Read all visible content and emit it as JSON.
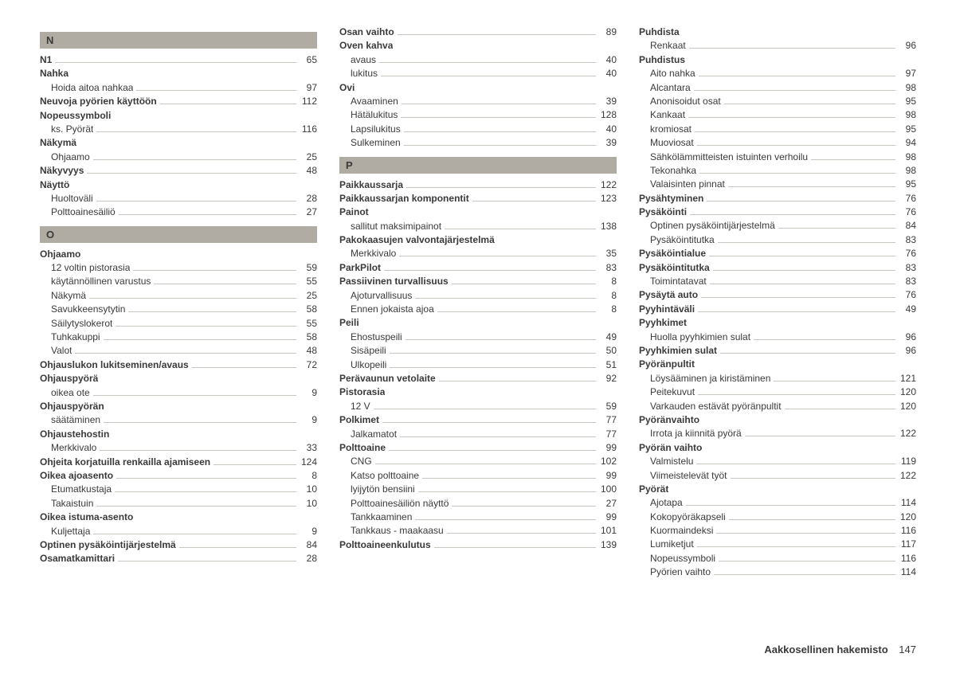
{
  "footer": {
    "title": "Aakkosellinen hakemisto",
    "page": "147"
  },
  "columns": [
    {
      "blocks": [
        {
          "type": "header",
          "text": "N"
        },
        {
          "type": "entry",
          "label": "N1",
          "page": "65",
          "bold": true
        },
        {
          "type": "entry",
          "label": "Nahka",
          "bold": true
        },
        {
          "type": "entry",
          "label": "Hoida aitoa nahkaa",
          "page": "97",
          "sub": true
        },
        {
          "type": "entry",
          "label": "Neuvoja pyörien käyttöön",
          "page": "112",
          "bold": true
        },
        {
          "type": "entry",
          "label": "Nopeussymboli",
          "bold": true
        },
        {
          "type": "entry",
          "label": "ks. Pyörät",
          "page": "116",
          "sub": true
        },
        {
          "type": "entry",
          "label": "Näkymä",
          "bold": true
        },
        {
          "type": "entry",
          "label": "Ohjaamo",
          "page": "25",
          "sub": true
        },
        {
          "type": "entry",
          "label": "Näkyvyys",
          "page": "48",
          "bold": true
        },
        {
          "type": "entry",
          "label": "Näyttö",
          "bold": true
        },
        {
          "type": "entry",
          "label": "Huoltoväli",
          "page": "28",
          "sub": true
        },
        {
          "type": "entry",
          "label": "Polttoainesäiliö",
          "page": "27",
          "sub": true
        },
        {
          "type": "header",
          "text": "O"
        },
        {
          "type": "entry",
          "label": "Ohjaamo",
          "bold": true
        },
        {
          "type": "entry",
          "label": "12 voltin pistorasia",
          "page": "59",
          "sub": true
        },
        {
          "type": "entry",
          "label": "käytännöllinen varustus",
          "page": "55",
          "sub": true
        },
        {
          "type": "entry",
          "label": "Näkymä",
          "page": "25",
          "sub": true
        },
        {
          "type": "entry",
          "label": "Savukkeensytytin",
          "page": "58",
          "sub": true
        },
        {
          "type": "entry",
          "label": "Säilytyslokerot",
          "page": "55",
          "sub": true
        },
        {
          "type": "entry",
          "label": "Tuhkakuppi",
          "page": "58",
          "sub": true
        },
        {
          "type": "entry",
          "label": "Valot",
          "page": "48",
          "sub": true
        },
        {
          "type": "entry",
          "label": "Ohjauslukon lukitseminen/avaus",
          "page": "72",
          "bold": true
        },
        {
          "type": "entry",
          "label": "Ohjauspyörä",
          "bold": true
        },
        {
          "type": "entry",
          "label": "oikea ote",
          "page": "9",
          "sub": true
        },
        {
          "type": "entry",
          "label": "Ohjauspyörän",
          "bold": true
        },
        {
          "type": "entry",
          "label": "säätäminen",
          "page": "9",
          "sub": true
        },
        {
          "type": "entry",
          "label": "Ohjaustehostin",
          "bold": true
        },
        {
          "type": "entry",
          "label": "Merkkivalo",
          "page": "33",
          "sub": true
        },
        {
          "type": "entry",
          "label": "Ohjeita korjatuilla renkailla ajamiseen",
          "page": "124",
          "bold": true
        },
        {
          "type": "entry",
          "label": "Oikea ajoasento",
          "page": "8",
          "bold": true
        },
        {
          "type": "entry",
          "label": "Etumatkustaja",
          "page": "10",
          "sub": true
        },
        {
          "type": "entry",
          "label": "Takaistuin",
          "page": "10",
          "sub": true
        },
        {
          "type": "entry",
          "label": "Oikea istuma-asento",
          "bold": true
        },
        {
          "type": "entry",
          "label": "Kuljettaja",
          "page": "9",
          "sub": true
        },
        {
          "type": "entry",
          "label": "Optinen pysäköintijärjestelmä",
          "page": "84",
          "bold": true
        },
        {
          "type": "entry",
          "label": "Osamatkamittari",
          "page": "28",
          "bold": true
        }
      ]
    },
    {
      "blocks": [
        {
          "type": "entry",
          "label": "Osan vaihto",
          "page": "89",
          "bold": true
        },
        {
          "type": "entry",
          "label": "Oven kahva",
          "bold": true
        },
        {
          "type": "entry",
          "label": "avaus",
          "page": "40",
          "sub": true
        },
        {
          "type": "entry",
          "label": "lukitus",
          "page": "40",
          "sub": true
        },
        {
          "type": "entry",
          "label": "Ovi",
          "bold": true
        },
        {
          "type": "entry",
          "label": "Avaaminen",
          "page": "39",
          "sub": true
        },
        {
          "type": "entry",
          "label": "Hätälukitus",
          "page": "128",
          "sub": true
        },
        {
          "type": "entry",
          "label": "Lapsilukitus",
          "page": "40",
          "sub": true
        },
        {
          "type": "entry",
          "label": "Sulkeminen",
          "page": "39",
          "sub": true
        },
        {
          "type": "header",
          "text": "P"
        },
        {
          "type": "entry",
          "label": "Paikkaussarja",
          "page": "122",
          "bold": true
        },
        {
          "type": "entry",
          "label": "Paikkaussarjan komponentit",
          "page": "123",
          "bold": true
        },
        {
          "type": "entry",
          "label": "Painot",
          "bold": true
        },
        {
          "type": "entry",
          "label": "sallitut maksimipainot",
          "page": "138",
          "sub": true
        },
        {
          "type": "entry",
          "label": "Pakokaasujen valvontajärjestelmä",
          "bold": true
        },
        {
          "type": "entry",
          "label": "Merkkivalo",
          "page": "35",
          "sub": true
        },
        {
          "type": "entry",
          "label": "ParkPilot",
          "page": "83",
          "bold": true
        },
        {
          "type": "entry",
          "label": "Passiivinen turvallisuus",
          "page": "8",
          "bold": true
        },
        {
          "type": "entry",
          "label": "Ajoturvallisuus",
          "page": "8",
          "sub": true
        },
        {
          "type": "entry",
          "label": "Ennen jokaista ajoa",
          "page": "8",
          "sub": true
        },
        {
          "type": "entry",
          "label": "Peili",
          "bold": true
        },
        {
          "type": "entry",
          "label": "Ehostuspeili",
          "page": "49",
          "sub": true
        },
        {
          "type": "entry",
          "label": "Sisäpeili",
          "page": "50",
          "sub": true
        },
        {
          "type": "entry",
          "label": "Ulkopeili",
          "page": "51",
          "sub": true
        },
        {
          "type": "entry",
          "label": "Perävaunun vetolaite",
          "page": "92",
          "bold": true
        },
        {
          "type": "entry",
          "label": "Pistorasia",
          "bold": true
        },
        {
          "type": "entry",
          "label": "12 V",
          "page": "59",
          "sub": true
        },
        {
          "type": "entry",
          "label": "Polkimet",
          "page": "77",
          "bold": true
        },
        {
          "type": "entry",
          "label": "Jalkamatot",
          "page": "77",
          "sub": true
        },
        {
          "type": "entry",
          "label": "Polttoaine",
          "page": "99",
          "bold": true
        },
        {
          "type": "entry",
          "label": "CNG",
          "page": "102",
          "sub": true
        },
        {
          "type": "entry",
          "label": "Katso polttoaine",
          "page": "99",
          "sub": true
        },
        {
          "type": "entry",
          "label": "lyijytön bensiini",
          "page": "100",
          "sub": true
        },
        {
          "type": "entry",
          "label": "Polttoainesäiliön näyttö",
          "page": "27",
          "sub": true
        },
        {
          "type": "entry",
          "label": "Tankkaaminen",
          "page": "99",
          "sub": true
        },
        {
          "type": "entry",
          "label": "Tankkaus - maakaasu",
          "page": "101",
          "sub": true
        },
        {
          "type": "entry",
          "label": "Polttoaineenkulutus",
          "page": "139",
          "bold": true
        }
      ]
    },
    {
      "blocks": [
        {
          "type": "entry",
          "label": "Puhdista",
          "bold": true
        },
        {
          "type": "entry",
          "label": "Renkaat",
          "page": "96",
          "sub": true
        },
        {
          "type": "entry",
          "label": "Puhdistus",
          "bold": true
        },
        {
          "type": "entry",
          "label": "Aito nahka",
          "page": "97",
          "sub": true
        },
        {
          "type": "entry",
          "label": "Alcantara",
          "page": "98",
          "sub": true
        },
        {
          "type": "entry",
          "label": "Anonisoidut osat",
          "page": "95",
          "sub": true
        },
        {
          "type": "entry",
          "label": "Kankaat",
          "page": "98",
          "sub": true
        },
        {
          "type": "entry",
          "label": "kromiosat",
          "page": "95",
          "sub": true
        },
        {
          "type": "entry",
          "label": "Muoviosat",
          "page": "94",
          "sub": true
        },
        {
          "type": "entry",
          "label": "Sähkölämmitteisten istuinten verhoilu",
          "page": "98",
          "sub": true
        },
        {
          "type": "entry",
          "label": "Tekonahka",
          "page": "98",
          "sub": true
        },
        {
          "type": "entry",
          "label": "Valaisinten pinnat",
          "page": "95",
          "sub": true
        },
        {
          "type": "entry",
          "label": "Pysähtyminen",
          "page": "76",
          "bold": true
        },
        {
          "type": "entry",
          "label": "Pysäköinti",
          "page": "76",
          "bold": true
        },
        {
          "type": "entry",
          "label": "Optinen pysäköintijärjestelmä",
          "page": "84",
          "sub": true
        },
        {
          "type": "entry",
          "label": "Pysäköintitutka",
          "page": "83",
          "sub": true
        },
        {
          "type": "entry",
          "label": "Pysäköintialue",
          "page": "76",
          "bold": true
        },
        {
          "type": "entry",
          "label": "Pysäköintitutka",
          "page": "83",
          "bold": true
        },
        {
          "type": "entry",
          "label": "Toimintatavat",
          "page": "83",
          "sub": true
        },
        {
          "type": "entry",
          "label": "Pysäytä auto",
          "page": "76",
          "bold": true
        },
        {
          "type": "entry",
          "label": "Pyyhintäväli",
          "page": "49",
          "bold": true
        },
        {
          "type": "entry",
          "label": "Pyyhkimet",
          "bold": true
        },
        {
          "type": "entry",
          "label": "Huolla pyyhkimien sulat",
          "page": "96",
          "sub": true
        },
        {
          "type": "entry",
          "label": "Pyyhkimien sulat",
          "page": "96",
          "bold": true
        },
        {
          "type": "entry",
          "label": "Pyöränpultit",
          "bold": true
        },
        {
          "type": "entry",
          "label": "Löysääminen ja kiristäminen",
          "page": "121",
          "sub": true
        },
        {
          "type": "entry",
          "label": "Peitekuvut",
          "page": "120",
          "sub": true
        },
        {
          "type": "entry",
          "label": "Varkauden estävät pyöränpultit",
          "page": "120",
          "sub": true
        },
        {
          "type": "entry",
          "label": "Pyöränvaihto",
          "bold": true
        },
        {
          "type": "entry",
          "label": "Irrota ja kiinnitä pyörä",
          "page": "122",
          "sub": true
        },
        {
          "type": "entry",
          "label": "Pyörän vaihto",
          "bold": true
        },
        {
          "type": "entry",
          "label": "Valmistelu",
          "page": "119",
          "sub": true
        },
        {
          "type": "entry",
          "label": "Viimeistelevät työt",
          "page": "122",
          "sub": true
        },
        {
          "type": "entry",
          "label": "Pyörät",
          "bold": true
        },
        {
          "type": "entry",
          "label": "Ajotapa",
          "page": "114",
          "sub": true
        },
        {
          "type": "entry",
          "label": "Kokopyöräkapseli",
          "page": "120",
          "sub": true
        },
        {
          "type": "entry",
          "label": "Kuormaindeksi",
          "page": "116",
          "sub": true
        },
        {
          "type": "entry",
          "label": "Lumiketjut",
          "page": "117",
          "sub": true
        },
        {
          "type": "entry",
          "label": "Nopeussymboli",
          "page": "116",
          "sub": true
        },
        {
          "type": "entry",
          "label": "Pyörien vaihto",
          "page": "114",
          "sub": true
        }
      ]
    }
  ]
}
